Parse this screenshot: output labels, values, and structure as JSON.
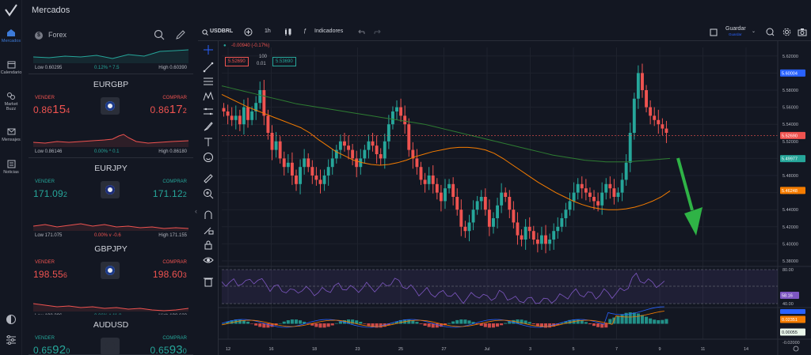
{
  "header": {
    "title": "Mercados"
  },
  "nav": {
    "items": [
      {
        "label": "Mercados",
        "icon": "home-icon"
      },
      {
        "label": "Calendario",
        "icon": "calendar-icon"
      },
      {
        "label": "Market Buzz",
        "icon": "buzz-icon"
      },
      {
        "label": "Mensajes",
        "icon": "mail-icon"
      },
      {
        "label": "Noticias",
        "icon": "news-icon"
      }
    ],
    "bottom": [
      "theme-icon",
      "settings-icon"
    ]
  },
  "panel": {
    "category": "Forex",
    "category_icon": "$",
    "top_card": {
      "low": "Low 0.60295",
      "change": "0.12% ^ 7.5",
      "high": "High 0.60390"
    },
    "cards": [
      {
        "symbol": "EURGBP",
        "sell_label": "VENDER",
        "buy_label": "COMPRAR",
        "sell": {
          "pre": "0.86",
          "big": "15",
          "sm": "4"
        },
        "buy": {
          "pre": "0.86",
          "big": "17",
          "sm": "2"
        },
        "sell_color": "#ef5350",
        "buy_color": "#ef5350",
        "low": "Low 0.86146",
        "change": "0.00% ^ 0.1",
        "high": "High 0.86180",
        "change_color": "#26a69a"
      },
      {
        "symbol": "EURJPY",
        "sell_label": "VENDER",
        "buy_label": "COMPRAR",
        "sell": {
          "pre": "171.09",
          "big": "",
          "sm": "2"
        },
        "buy": {
          "pre": "171.12",
          "big": "",
          "sm": "2"
        },
        "sell_color": "#26a69a",
        "buy_color": "#26a69a",
        "low": "Low 171.075",
        "change": "0.00% v -0.6",
        "high": "High 171.155",
        "change_color": "#ef5350"
      },
      {
        "symbol": "GBPJPY",
        "sell_label": "VENDER",
        "buy_label": "COMPRAR",
        "sell": {
          "pre": "198.55",
          "big": "",
          "sm": "6"
        },
        "buy": {
          "pre": "198.60",
          "big": "",
          "sm": "3"
        },
        "sell_color": "#ef5350",
        "buy_color": "#ef5350",
        "low": "Low 198.396",
        "change": "0.06% ^ 11.8",
        "high": "High 198.623",
        "change_color": "#26a69a"
      },
      {
        "symbol": "AUDUSD",
        "sell_label": "VENDER",
        "buy_label": "COMPRAR",
        "sell": {
          "pre": "0.65",
          "big": "92",
          "sm": "0"
        },
        "buy": {
          "pre": "0.65",
          "big": "93",
          "sm": "0"
        },
        "sell_color": "#26a69a",
        "buy_color": "#26a69a",
        "low": "",
        "change": "",
        "high": "",
        "change_color": "#26a69a"
      }
    ]
  },
  "chart_toolbar": {
    "symbol": "USDBRL",
    "timeframe": "1h",
    "indicators": "Indicadores",
    "save": "Guardar",
    "save_sub": "Guardar"
  },
  "chart_info": {
    "change": "-0.00940 (-0.17%)",
    "sell_price": "5.52690",
    "spread_top": "100",
    "spread_bottom": "0.01",
    "buy_price": "5.53690"
  },
  "chart_data": {
    "type": "line",
    "symbol": "USDBRL",
    "timeframe": "1h",
    "price_axis": [
      "5.62000",
      "5.60000",
      "5.58000",
      "5.56000",
      "5.54000",
      "5.52000",
      "5.50000",
      "5.48000",
      "5.46000",
      "5.44000",
      "5.42000",
      "5.40000",
      "5.38000"
    ],
    "price_tags": [
      {
        "value": "5.60004",
        "color": "#2962ff"
      },
      {
        "value": "5.52690",
        "color": "#ef5350"
      },
      {
        "value": "5.49977",
        "color": "#26a69a"
      },
      {
        "value": "5.46248",
        "color": "#f57c00"
      }
    ],
    "rsi_axis": [
      "80.00",
      "40.00"
    ],
    "rsi_value": "58.16",
    "macd_tags": [
      {
        "value": "0.02351",
        "color": "#f57c00"
      },
      {
        "value": "0.00055",
        "color": "#26a69a"
      }
    ],
    "macd_axis": [
      "-0.02000"
    ],
    "x_labels": [
      "12",
      "16",
      "18",
      "23",
      "25",
      "27",
      "Jul",
      "3",
      "5",
      "7",
      "9",
      "11",
      "14"
    ],
    "ylim": [
      5.38,
      5.63
    ],
    "close_series": [
      5.555,
      5.55,
      5.545,
      5.55,
      5.54,
      5.56,
      5.545,
      5.555,
      5.565,
      5.58,
      5.55,
      5.53,
      5.51,
      5.52,
      5.5,
      5.49,
      5.495,
      5.48,
      5.47,
      5.49,
      5.5,
      5.49,
      5.48,
      5.475,
      5.47,
      5.48,
      5.49,
      5.5,
      5.51,
      5.52,
      5.515,
      5.51,
      5.5,
      5.49,
      5.5,
      5.51,
      5.52,
      5.515,
      5.505,
      5.5,
      5.52,
      5.54,
      5.555,
      5.56,
      5.55,
      5.54,
      5.51,
      5.5,
      5.49,
      5.475,
      5.47,
      5.48,
      5.47,
      5.46,
      5.45,
      5.465,
      5.47,
      5.455,
      5.44,
      5.42,
      5.415,
      5.425,
      5.44,
      5.45,
      5.455,
      5.44,
      5.42,
      5.43,
      5.445,
      5.46,
      5.455,
      5.44,
      5.425,
      5.41,
      5.405,
      5.42,
      5.415,
      5.405,
      5.4,
      5.41,
      5.4,
      5.405,
      5.415,
      5.42,
      5.43,
      5.44,
      5.45,
      5.46,
      5.47,
      5.465,
      5.46,
      5.455,
      5.45,
      5.445,
      5.46,
      5.47,
      5.465,
      5.455,
      5.46,
      5.475,
      5.495,
      5.53,
      5.57,
      5.6,
      5.58,
      5.56,
      5.55,
      5.545,
      5.54,
      5.535,
      5.53
    ],
    "ma_fast": [
      5.575,
      5.57,
      5.565,
      5.56,
      5.556,
      5.552,
      5.548,
      5.544,
      5.54,
      5.536,
      5.53,
      5.522,
      5.515,
      5.508,
      5.503,
      5.498,
      5.495,
      5.493,
      5.492,
      5.493,
      5.495,
      5.498,
      5.502,
      5.505,
      5.508,
      5.51,
      5.512,
      5.513,
      5.513,
      5.512,
      5.51,
      5.506,
      5.5,
      5.493,
      5.486,
      5.479,
      5.472,
      5.466,
      5.46,
      5.455,
      5.45,
      5.446,
      5.443,
      5.441,
      5.44,
      5.44,
      5.441,
      5.443,
      5.446,
      5.45,
      5.455,
      5.462
    ],
    "ma_slow": [
      5.585,
      5.582,
      5.579,
      5.576,
      5.573,
      5.57,
      5.567,
      5.564,
      5.562,
      5.56,
      5.558,
      5.556,
      5.554,
      5.552,
      5.55,
      5.548,
      5.546,
      5.544,
      5.542,
      5.54,
      5.537,
      5.534,
      5.531,
      5.528,
      5.525,
      5.522,
      5.519,
      5.516,
      5.513,
      5.51,
      5.507,
      5.504,
      5.502,
      5.5,
      5.498,
      5.497,
      5.496,
      5.496,
      5.496,
      5.497,
      5.498,
      5.499,
      5.5
    ]
  },
  "colors": {
    "up": "#26a69a",
    "down": "#ef5350",
    "accent": "#2962ff",
    "arrow": "#2fb346"
  }
}
